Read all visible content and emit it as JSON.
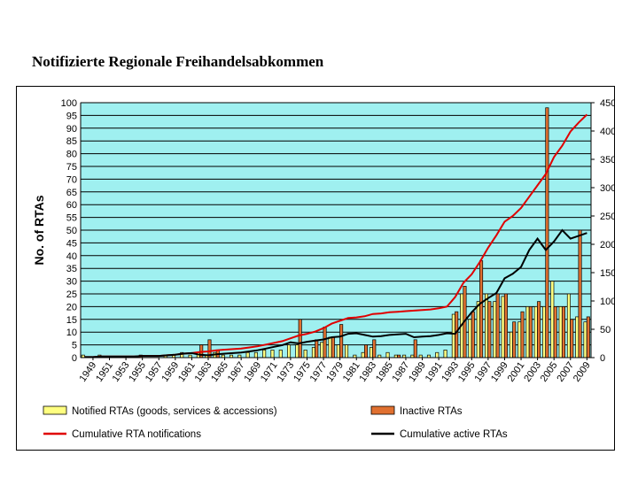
{
  "page": {
    "title": "Notifizierte Regionale Freihandelsabkommen"
  },
  "chart_data": {
    "type": "bar",
    "title": "",
    "ylabel": "No. of RTAs",
    "ylim": [
      0,
      100
    ],
    "y2lim": [
      0,
      450
    ],
    "yticks": [
      0,
      5,
      10,
      15,
      20,
      25,
      30,
      35,
      40,
      45,
      50,
      55,
      60,
      65,
      70,
      75,
      80,
      85,
      90,
      95,
      100
    ],
    "y2ticks": [
      0,
      50,
      100,
      150,
      200,
      250,
      300,
      350,
      400,
      450
    ],
    "x_tick_labels": [
      "1949",
      "1951",
      "1953",
      "1955",
      "1957",
      "1959",
      "1961",
      "1963",
      "1965",
      "1967",
      "1969",
      "1971",
      "1973",
      "1975",
      "1977",
      "1979",
      "1981",
      "1983",
      "1985",
      "1987",
      "1989",
      "1991",
      "1993",
      "1995",
      "1997",
      "1999",
      "2001",
      "2003",
      "2005",
      "2007",
      "2009"
    ],
    "years": [
      1948,
      1949,
      1950,
      1951,
      1952,
      1953,
      1954,
      1955,
      1956,
      1957,
      1958,
      1959,
      1960,
      1961,
      1962,
      1963,
      1964,
      1965,
      1966,
      1967,
      1968,
      1969,
      1970,
      1971,
      1972,
      1973,
      1974,
      1975,
      1976,
      1977,
      1978,
      1979,
      1980,
      1981,
      1982,
      1983,
      1984,
      1985,
      1986,
      1987,
      1988,
      1989,
      1990,
      1991,
      1992,
      1993,
      1994,
      1995,
      1996,
      1997,
      1998,
      1999,
      2000,
      2001,
      2002,
      2003,
      2004,
      2005,
      2006,
      2007,
      2008,
      2009
    ],
    "series": [
      {
        "name": "Notified RTAs (goods, services & accessions)",
        "kind": "bar",
        "axis": "left",
        "color": "#ffff80",
        "values": [
          1,
          0,
          1,
          0,
          0,
          0,
          0,
          1,
          0,
          0,
          1,
          1,
          2,
          1,
          2,
          1,
          2,
          1,
          1,
          1,
          2,
          2,
          3,
          3,
          3,
          5,
          5,
          3,
          4,
          6,
          8,
          5,
          5,
          1,
          2,
          4,
          1,
          2,
          1,
          1,
          1,
          1,
          1,
          2,
          3,
          17,
          25,
          15,
          22,
          25,
          22,
          24,
          10,
          14,
          20,
          20,
          20,
          30,
          20,
          25,
          16,
          14
        ]
      },
      {
        "name": "Inactive RTAs",
        "kind": "bar",
        "axis": "left",
        "color": "#e07030",
        "values": [
          0,
          0,
          0,
          0,
          0,
          0,
          0,
          0,
          0,
          0,
          0,
          0,
          0,
          0,
          5,
          7,
          3,
          0,
          0,
          0,
          0,
          0,
          0,
          0,
          0,
          0,
          15,
          0,
          7,
          12,
          8,
          13,
          0,
          0,
          5,
          7,
          0,
          0,
          1,
          0,
          7,
          0,
          0,
          0,
          0,
          18,
          28,
          18,
          38,
          22,
          25,
          25,
          14,
          18,
          20,
          22,
          98,
          20,
          20,
          15,
          50,
          16
        ]
      },
      {
        "name": "Cumulative RTA notifications",
        "kind": "line",
        "axis": "right",
        "color": "#e00000",
        "values": [
          1,
          1,
          2,
          2,
          2,
          2,
          2,
          3,
          3,
          3,
          4,
          5,
          7,
          8,
          10,
          11,
          13,
          14,
          15,
          16,
          18,
          20,
          23,
          26,
          29,
          34,
          39,
          42,
          46,
          52,
          60,
          65,
          70,
          71,
          73,
          77,
          78,
          80,
          81,
          82,
          83,
          84,
          85,
          87,
          90,
          107,
          132,
          147,
          169,
          194,
          216,
          240,
          250,
          264,
          284,
          304,
          324,
          354,
          374,
          399,
          415,
          429
        ]
      },
      {
        "name": "Cumulative active RTAs",
        "kind": "line",
        "axis": "right",
        "color": "#000000",
        "values": [
          1,
          1,
          2,
          2,
          2,
          2,
          2,
          3,
          3,
          3,
          4,
          5,
          7,
          8,
          5,
          4,
          6,
          7,
          8,
          9,
          11,
          13,
          16,
          19,
          22,
          27,
          25,
          28,
          30,
          32,
          36,
          37,
          42,
          43,
          40,
          37,
          38,
          40,
          41,
          42,
          36,
          37,
          38,
          40,
          43,
          42,
          62,
          80,
          95,
          105,
          114,
          140,
          148,
          160,
          190,
          210,
          190,
          205,
          225,
          210,
          215,
          220
        ]
      }
    ],
    "legend": "bottom",
    "grid": "horizontal"
  }
}
